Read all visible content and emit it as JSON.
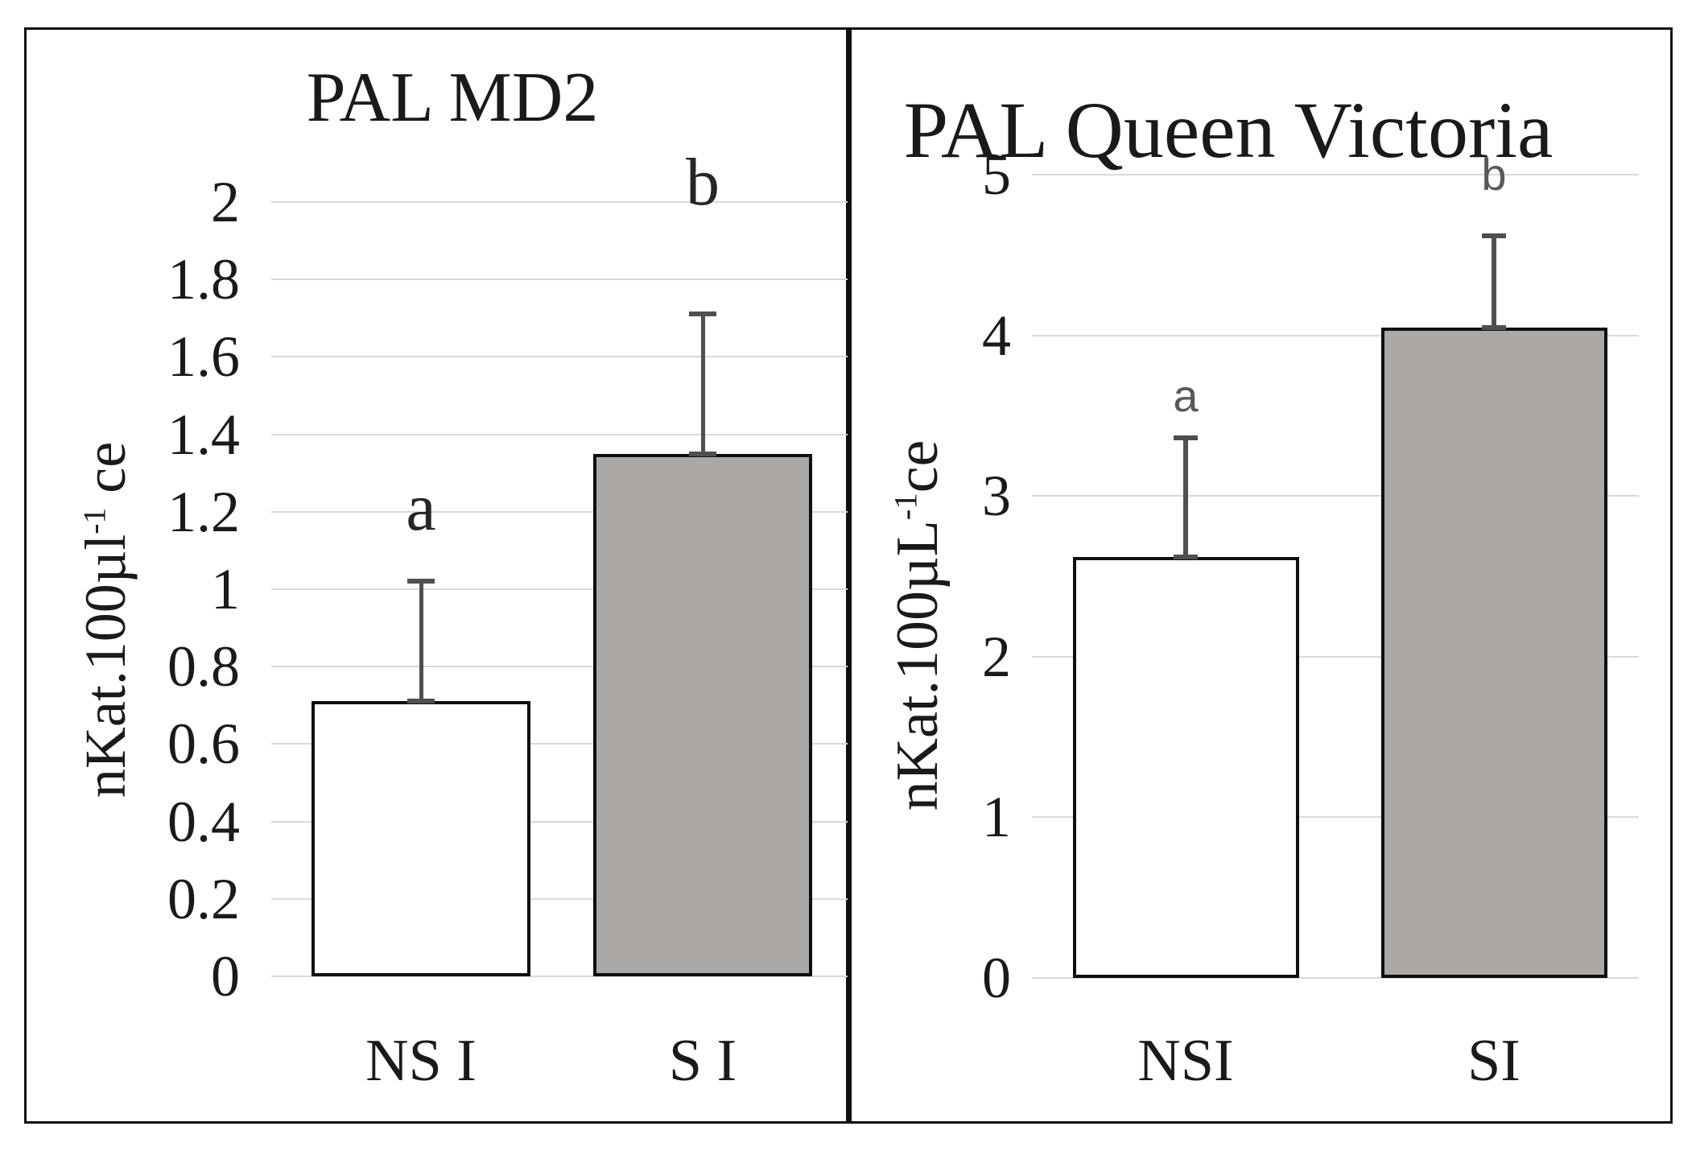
{
  "colors": {
    "bar_white": "#ffffff",
    "bar_gray": "#aca8a5",
    "bar_border": "#0f0f0f",
    "error_bar": "#4f4f4f",
    "gridline": "#d9d9d9",
    "text": "#1a1a1a",
    "letter_left": "#262626",
    "letter_right": "#595959",
    "frame": "#0f0f0f"
  },
  "chart_data": [
    {
      "type": "bar",
      "title": "PAL MD2",
      "ylabel": {
        "base": "nKat.100µl",
        "sup": "-1",
        "rest": " ce"
      },
      "xlabel": "",
      "ylim": [
        0,
        2
      ],
      "ytick_step": 0.2,
      "yticks": [
        "2",
        "1.8",
        "1.6",
        "1.4",
        "1.2",
        "1",
        "0.8",
        "0.6",
        "0.4",
        "0.2",
        "0"
      ],
      "categories": [
        "NS I",
        "S I"
      ],
      "values": [
        0.71,
        1.35
      ],
      "error_tops": [
        1.02,
        1.71
      ],
      "sig_letters": [
        "a",
        "b"
      ],
      "letter_positions": [
        1.21,
        2.05
      ],
      "bar_fills": [
        "#ffffff",
        "#aca8a5"
      ],
      "grid": true,
      "legend": false
    },
    {
      "type": "bar",
      "title": "PAL Queen Victoria",
      "ylabel": {
        "base": "nKat.100µL",
        "sup": "-1",
        "rest": "ce"
      },
      "xlabel": "",
      "ylim": [
        0,
        5
      ],
      "ytick_step": 1,
      "yticks": [
        "5",
        "4",
        "3",
        "2",
        "1",
        "0"
      ],
      "categories": [
        "NSI",
        "SI"
      ],
      "values": [
        2.62,
        4.05
      ],
      "error_tops": [
        3.36,
        4.62
      ],
      "sig_letters": [
        "a",
        "b"
      ],
      "letter_positions": [
        3.62,
        5.0
      ],
      "bar_fills": [
        "#ffffff",
        "#aca8a5"
      ],
      "grid": true,
      "legend": false
    }
  ]
}
